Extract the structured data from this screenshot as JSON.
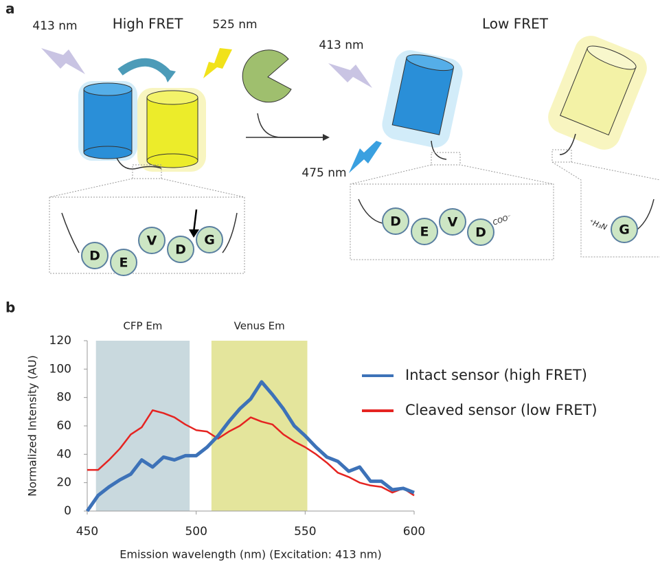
{
  "panel_a": {
    "label": "a",
    "high_fret": {
      "title": "High FRET",
      "excitation": "413 nm",
      "emission": "525 nm",
      "residues": [
        "D",
        "E",
        "V",
        "D",
        "G"
      ]
    },
    "low_fret": {
      "title": "Low FRET",
      "excitation": "413 nm",
      "emission": "475 nm",
      "residues_n": [
        "D",
        "E",
        "V",
        "D"
      ],
      "c_term": "COO⁻",
      "n_term": "⁺H₃N",
      "residues_c": [
        "G"
      ]
    }
  },
  "panel_b_label": "b",
  "chart_data": {
    "type": "line",
    "x_label": "Emission wavelength (nm) (Excitation: 413 nm)",
    "y_label": "Normalized Intensity (AU)",
    "x": [
      450,
      455,
      460,
      465,
      470,
      475,
      480,
      485,
      490,
      495,
      500,
      505,
      510,
      515,
      520,
      525,
      530,
      535,
      540,
      545,
      550,
      555,
      560,
      565,
      570,
      575,
      580,
      585,
      590,
      595,
      600
    ],
    "series": [
      {
        "name": "Intact sensor (high FRET)",
        "color": "#3d72b8",
        "values": [
          0,
          11,
          17,
          22,
          26,
          36,
          31,
          38,
          36,
          39,
          39,
          45,
          53,
          63,
          72,
          79,
          91,
          82,
          72,
          60,
          53,
          45,
          38,
          35,
          28,
          31,
          21,
          21,
          15,
          16,
          13
        ]
      },
      {
        "name": "Cleaved sensor (low FRET)",
        "color": "#e52421",
        "values": [
          29,
          29,
          36,
          44,
          54,
          59,
          71,
          69,
          66,
          61,
          57,
          56,
          51,
          56,
          60,
          66,
          63,
          61,
          54,
          49,
          45,
          40,
          34,
          27,
          24,
          20,
          18,
          17,
          13,
          16,
          11
        ]
      }
    ],
    "bands": [
      {
        "label": "CFP Em",
        "range": [
          454,
          497
        ],
        "color": "#c9d9de"
      },
      {
        "label": "Venus Em",
        "range": [
          507,
          551
        ],
        "color": "#e4e59c"
      }
    ],
    "xlim": [
      450,
      600
    ],
    "xticks": [
      450,
      500,
      550,
      600
    ],
    "ylim": [
      0,
      120
    ],
    "yticks": [
      0,
      20,
      40,
      60,
      80,
      100,
      120
    ]
  }
}
